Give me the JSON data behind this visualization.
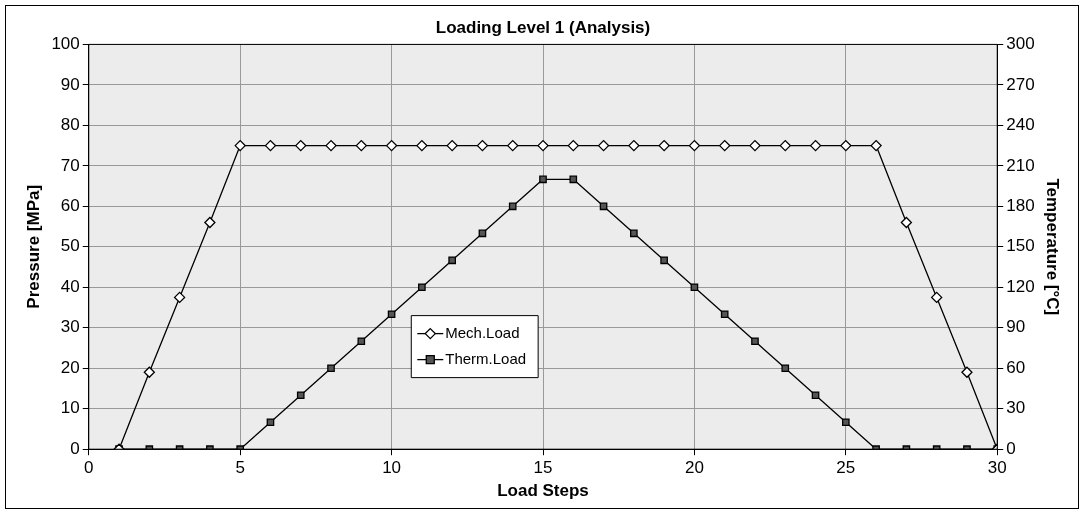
{
  "chart_data": {
    "type": "line",
    "title": "Loading Level 1 (Analysis)",
    "xlabel": "Load Steps",
    "ylabel": "Pressure [MPa]",
    "y2label": "Temperature [°C]",
    "x": [
      1,
      2,
      3,
      4,
      5,
      6,
      7,
      8,
      9,
      10,
      11,
      12,
      13,
      14,
      15,
      16,
      17,
      18,
      19,
      20,
      21,
      22,
      23,
      24,
      25,
      26,
      27,
      28,
      29,
      30
    ],
    "series": [
      {
        "name": "Mech.Load",
        "color": "#000000",
        "marker": "diamond",
        "values": [
          0,
          19,
          37.5,
          56,
          75,
          75,
          75,
          75,
          75,
          75,
          75,
          75,
          75,
          75,
          75,
          75,
          75,
          75,
          75,
          75,
          75,
          75,
          75,
          75,
          75,
          75,
          56,
          37.5,
          19,
          0
        ]
      },
      {
        "name": "Therm.Load",
        "color": "#000000",
        "marker": "square",
        "axis": "y2",
        "values": [
          0,
          0,
          0,
          0,
          0,
          20,
          40,
          60,
          80,
          100,
          120,
          140,
          160,
          180,
          200,
          200,
          180,
          160,
          140,
          120,
          100,
          80,
          60,
          40,
          20,
          0,
          0,
          0,
          0,
          0
        ]
      }
    ],
    "xlim": [
      0,
      30
    ],
    "xticks": [
      0,
      5,
      10,
      15,
      20,
      25,
      30
    ],
    "ylim": [
      0,
      100
    ],
    "yticks": [
      0,
      10,
      20,
      30,
      40,
      50,
      60,
      70,
      80,
      90,
      100
    ],
    "y2lim": [
      0,
      300
    ],
    "y2ticks": [
      0,
      30,
      60,
      90,
      120,
      150,
      180,
      210,
      240,
      270,
      300
    ],
    "grid": true,
    "legend": "center",
    "line_style": "solid"
  }
}
